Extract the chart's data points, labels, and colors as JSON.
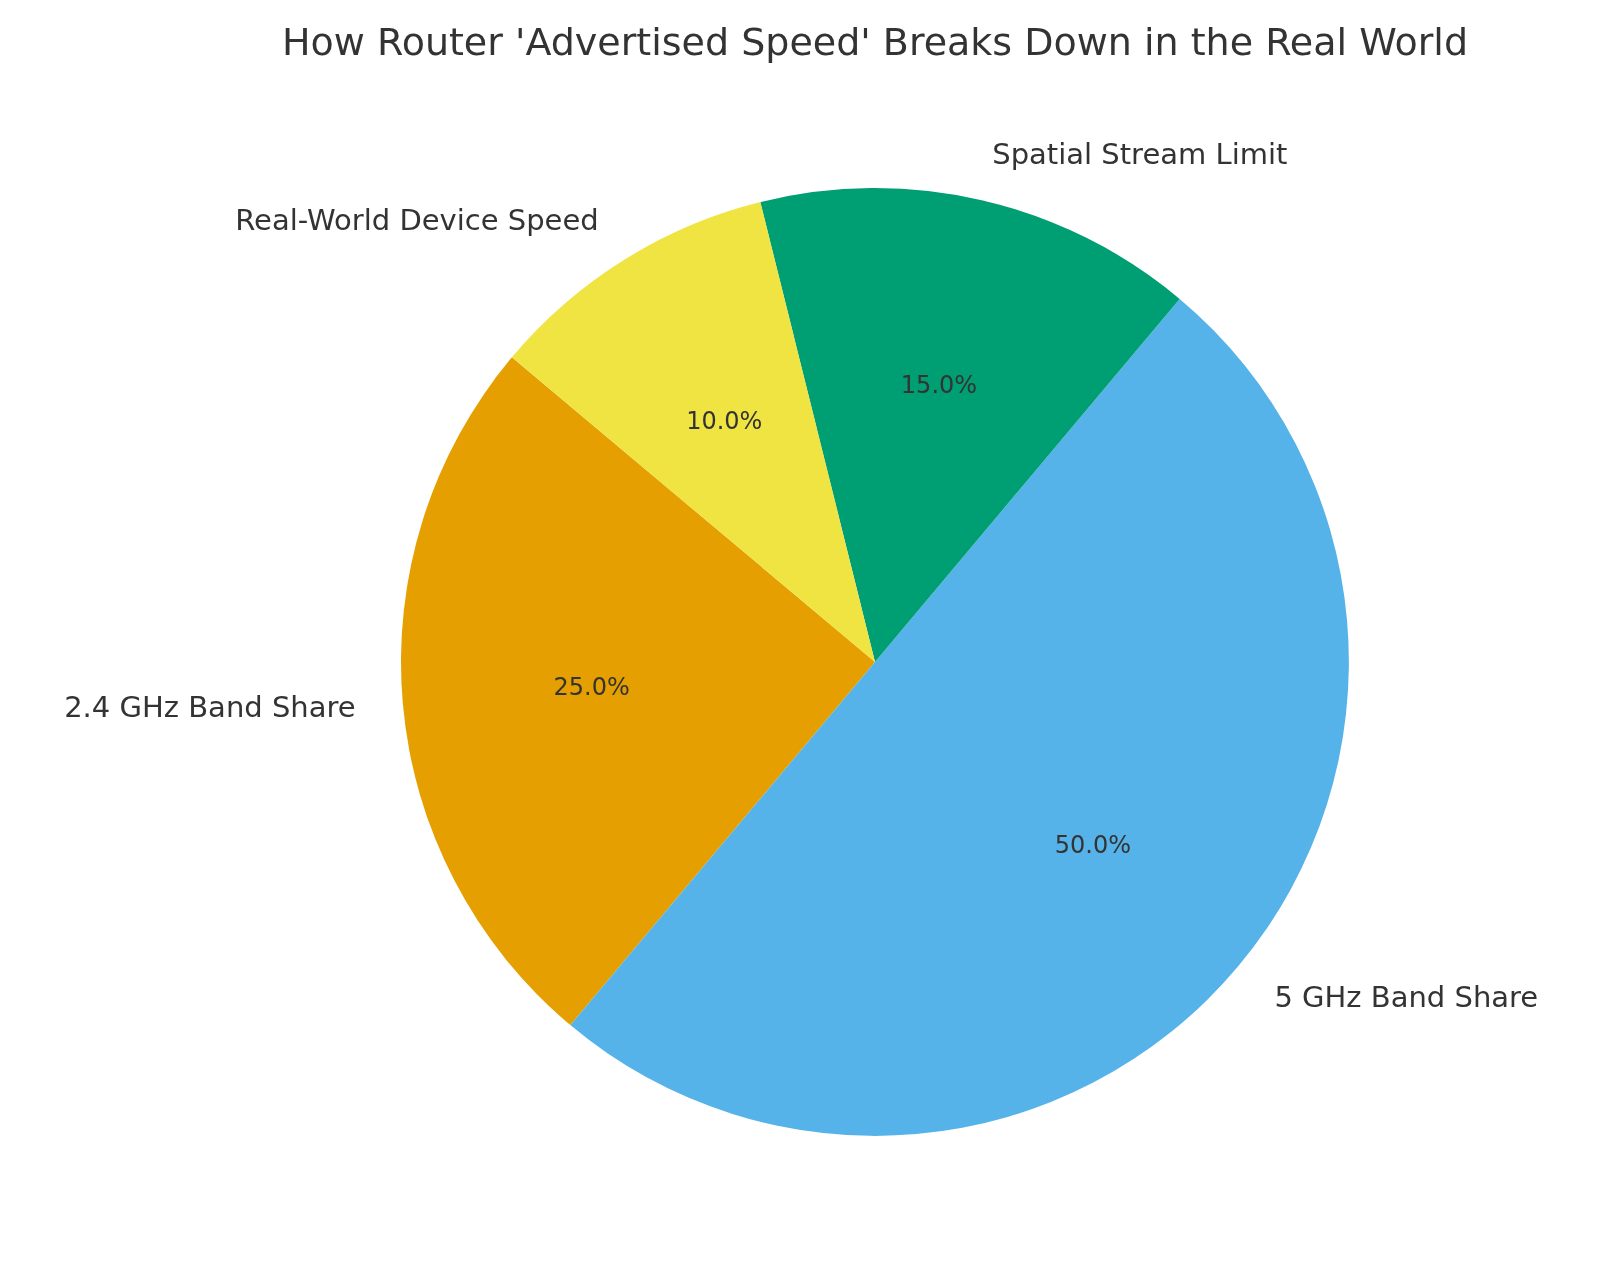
{
  "chart_data": {
    "type": "pie",
    "title": "How Router 'Advertised Speed' Breaks Down in the Real World",
    "categories": [
      "2.4 GHz Band Share",
      "5 GHz Band Share",
      "Spatial Stream Limit",
      "Real-World Device Speed"
    ],
    "values": [
      25,
      50,
      15,
      10
    ],
    "value_labels": [
      "25.0%",
      "50.0%",
      "15.0%",
      "10.0%"
    ],
    "colors": [
      "#e69f00",
      "#56b3e9",
      "#009e73",
      "#f0e442"
    ]
  }
}
